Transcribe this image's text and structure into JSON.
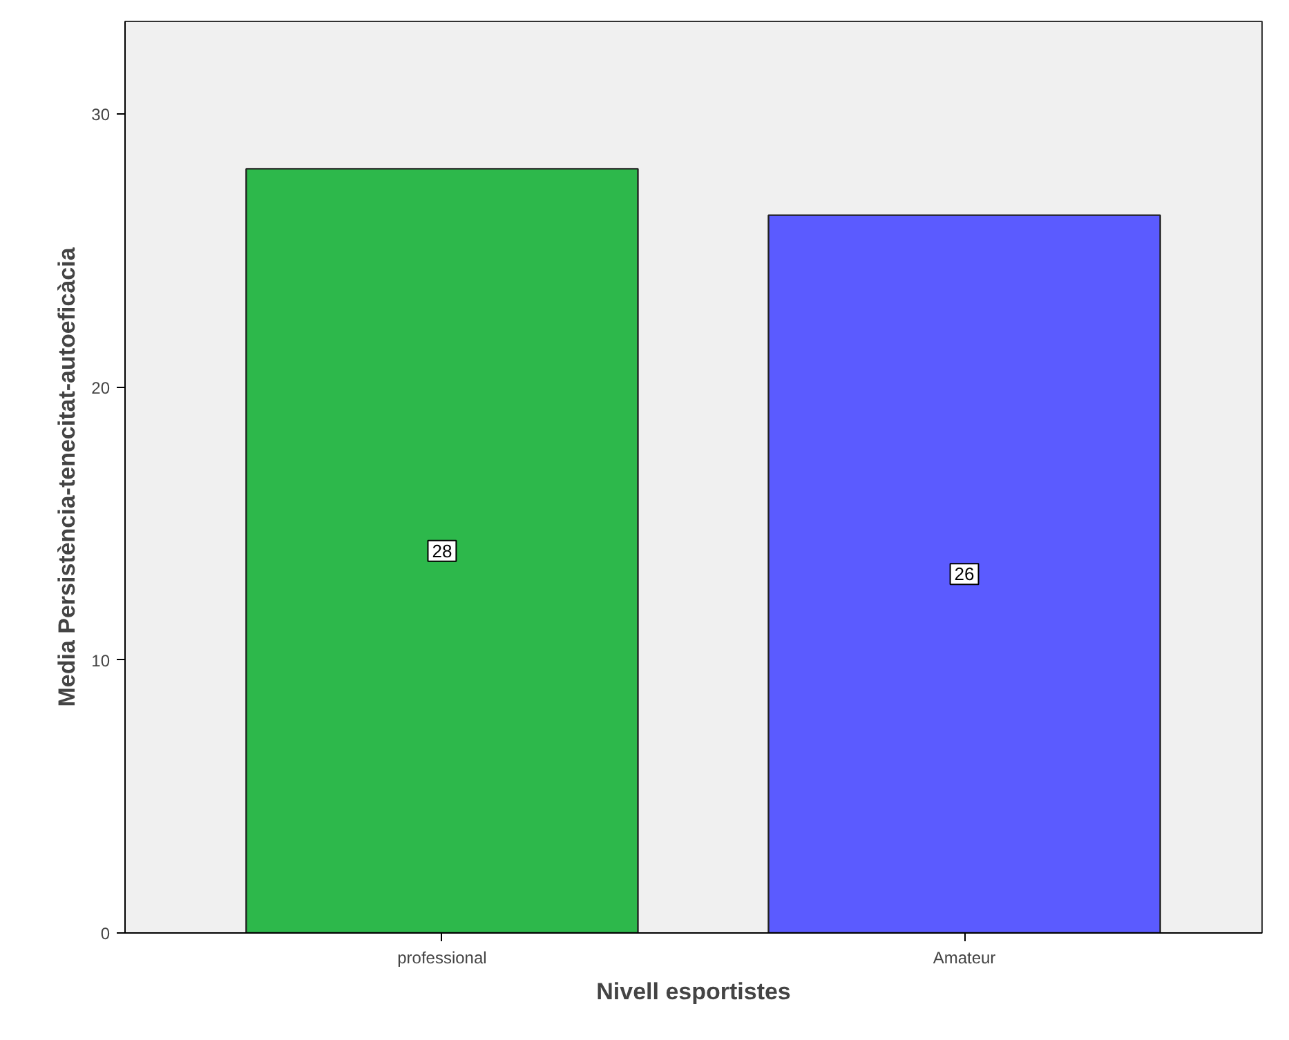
{
  "chart_data": {
    "type": "bar",
    "xlabel": "Nivell esportistes",
    "ylabel": "Media Persistència-tenecitat-autoeficàcia",
    "categories": [
      "professional",
      "Amateur"
    ],
    "values": [
      28.0,
      26.3
    ],
    "colors": [
      "#2db84b",
      "#5b5bff"
    ],
    "value_labels": [
      "28",
      "26"
    ],
    "ylim": [
      0,
      33.4
    ],
    "yticks": [
      0,
      10,
      20,
      30
    ],
    "grid": false
  }
}
